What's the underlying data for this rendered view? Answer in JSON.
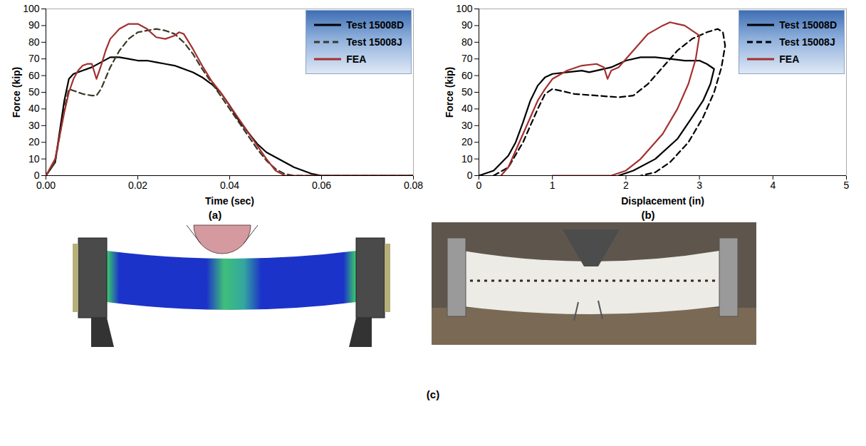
{
  "chart_data": [
    {
      "type": "line",
      "caption": "(a)",
      "x_label": "Time (sec)",
      "y_label": "Force (kip)",
      "xlim": [
        0,
        0.08
      ],
      "xticks": [
        {
          "value": 0,
          "label": "0.00"
        },
        {
          "value": 0.02,
          "label": "0.02"
        },
        {
          "value": 0.04,
          "label": "0.04"
        },
        {
          "value": 0.06,
          "label": "0.06"
        },
        {
          "value": 0.08,
          "label": "0.08"
        }
      ],
      "ylim": [
        0,
        100
      ],
      "yticks": [
        0,
        10,
        20,
        30,
        40,
        50,
        60,
        70,
        80,
        90,
        100
      ],
      "grid": false,
      "legend": "top-right",
      "series": [
        {
          "name": "Test 15008D",
          "color": "#000000",
          "line_style": "solid",
          "x": [
            0,
            0.002,
            0.004,
            0.005,
            0.006,
            0.008,
            0.01,
            0.012,
            0.014,
            0.016,
            0.018,
            0.02,
            0.022,
            0.024,
            0.026,
            0.028,
            0.03,
            0.032,
            0.034,
            0.036,
            0.038,
            0.04,
            0.042,
            0.044,
            0.046,
            0.048,
            0.05,
            0.052,
            0.054,
            0.056,
            0.058,
            0.06,
            0.08
          ],
          "values": [
            0,
            8,
            45,
            58,
            61,
            63,
            65,
            68,
            71,
            71,
            70,
            69,
            69,
            68,
            67,
            66,
            64,
            62,
            59,
            55,
            50,
            42,
            33,
            26,
            19,
            14,
            11,
            8,
            5,
            3,
            1,
            0,
            0
          ]
        },
        {
          "name": "Test 15008J",
          "color": "#3a3828",
          "line_style": "dashed",
          "x": [
            0,
            0.002,
            0.004,
            0.005,
            0.006,
            0.007,
            0.008,
            0.01,
            0.011,
            0.012,
            0.014,
            0.016,
            0.018,
            0.02,
            0.022,
            0.024,
            0.026,
            0.028,
            0.03,
            0.032,
            0.034,
            0.036,
            0.038,
            0.04,
            0.042,
            0.044,
            0.046,
            0.048,
            0.05,
            0.052,
            0.054,
            0.08
          ],
          "values": [
            0,
            8,
            40,
            52,
            51,
            50,
            49,
            48,
            48,
            52,
            65,
            75,
            82,
            86,
            87,
            88,
            87,
            85,
            80,
            73,
            64,
            56,
            48,
            40,
            32,
            24,
            16,
            9,
            4,
            1,
            0,
            0
          ]
        },
        {
          "name": "FEA",
          "color": "#a3302f",
          "line_style": "solid",
          "x": [
            0,
            0.002,
            0.004,
            0.005,
            0.006,
            0.007,
            0.008,
            0.009,
            0.01,
            0.011,
            0.012,
            0.013,
            0.014,
            0.016,
            0.018,
            0.02,
            0.022,
            0.024,
            0.026,
            0.028,
            0.029,
            0.03,
            0.032,
            0.034,
            0.036,
            0.038,
            0.04,
            0.042,
            0.044,
            0.046,
            0.048,
            0.05,
            0.052,
            0.08
          ],
          "values": [
            0,
            10,
            38,
            50,
            58,
            63,
            66,
            67,
            67,
            58,
            66,
            75,
            82,
            88,
            91,
            91,
            88,
            83,
            82,
            84,
            86,
            85,
            76,
            66,
            57,
            50,
            42,
            34,
            26,
            18,
            10,
            3,
            0,
            0
          ]
        }
      ]
    },
    {
      "type": "line",
      "caption": "(b)",
      "x_label": "Displacement (in)",
      "y_label": "Force (kip)",
      "xlim": [
        0,
        5
      ],
      "xticks": [
        0,
        1,
        2,
        3,
        4,
        5
      ],
      "ylim": [
        0,
        100
      ],
      "yticks": [
        0,
        10,
        20,
        30,
        40,
        50,
        60,
        70,
        80,
        90,
        100
      ],
      "grid": false,
      "legend": "top-right",
      "series": [
        {
          "name": "Test 15008D",
          "color": "#000000",
          "line_style": "solid",
          "x": [
            0,
            0.2,
            0.4,
            0.5,
            0.6,
            0.7,
            0.8,
            0.9,
            1.0,
            1.2,
            1.4,
            1.5,
            1.6,
            1.8,
            2.0,
            2.2,
            2.4,
            2.6,
            2.8,
            3.0,
            3.1,
            3.2,
            3.15,
            3.05,
            2.9,
            2.7,
            2.4,
            2.1,
            1.9
          ],
          "values": [
            0,
            3,
            12,
            20,
            32,
            45,
            54,
            59,
            61,
            62,
            63,
            62,
            63,
            65,
            69,
            71,
            71,
            70,
            69,
            69,
            67,
            64,
            55,
            45,
            35,
            22,
            10,
            3,
            0
          ]
        },
        {
          "name": "Test 15008J",
          "color": "#000000",
          "line_style": "dashed",
          "x": [
            0.2,
            0.4,
            0.6,
            0.8,
            0.9,
            1.0,
            1.1,
            1.3,
            1.6,
            1.9,
            2.1,
            2.3,
            2.5,
            2.7,
            2.9,
            3.1,
            3.25,
            3.32,
            3.35,
            3.3,
            3.2,
            3.05,
            2.85,
            2.6,
            2.4,
            2.2
          ],
          "values": [
            0,
            5,
            20,
            40,
            49,
            52,
            51,
            49,
            48,
            47,
            48,
            55,
            65,
            75,
            82,
            86,
            88,
            86,
            78,
            65,
            50,
            35,
            20,
            8,
            2,
            0
          ]
        },
        {
          "name": "FEA",
          "color": "#a3302f",
          "line_style": "solid",
          "x": [
            0.3,
            0.4,
            0.6,
            0.8,
            0.9,
            1.0,
            1.2,
            1.4,
            1.6,
            1.7,
            1.75,
            1.8,
            1.9,
            2.1,
            2.3,
            2.5,
            2.6,
            2.7,
            2.8,
            2.9,
            3.0,
            2.95,
            2.85,
            2.7,
            2.5,
            2.2,
            2.0,
            1.8,
            1.0
          ],
          "values": [
            0,
            5,
            25,
            45,
            52,
            58,
            63,
            66,
            67,
            65,
            58,
            63,
            65,
            75,
            85,
            90,
            92,
            91,
            90,
            87,
            84,
            70,
            55,
            40,
            25,
            10,
            3,
            0,
            0
          ]
        }
      ]
    }
  ],
  "panel_c": {
    "caption": "(c)"
  }
}
